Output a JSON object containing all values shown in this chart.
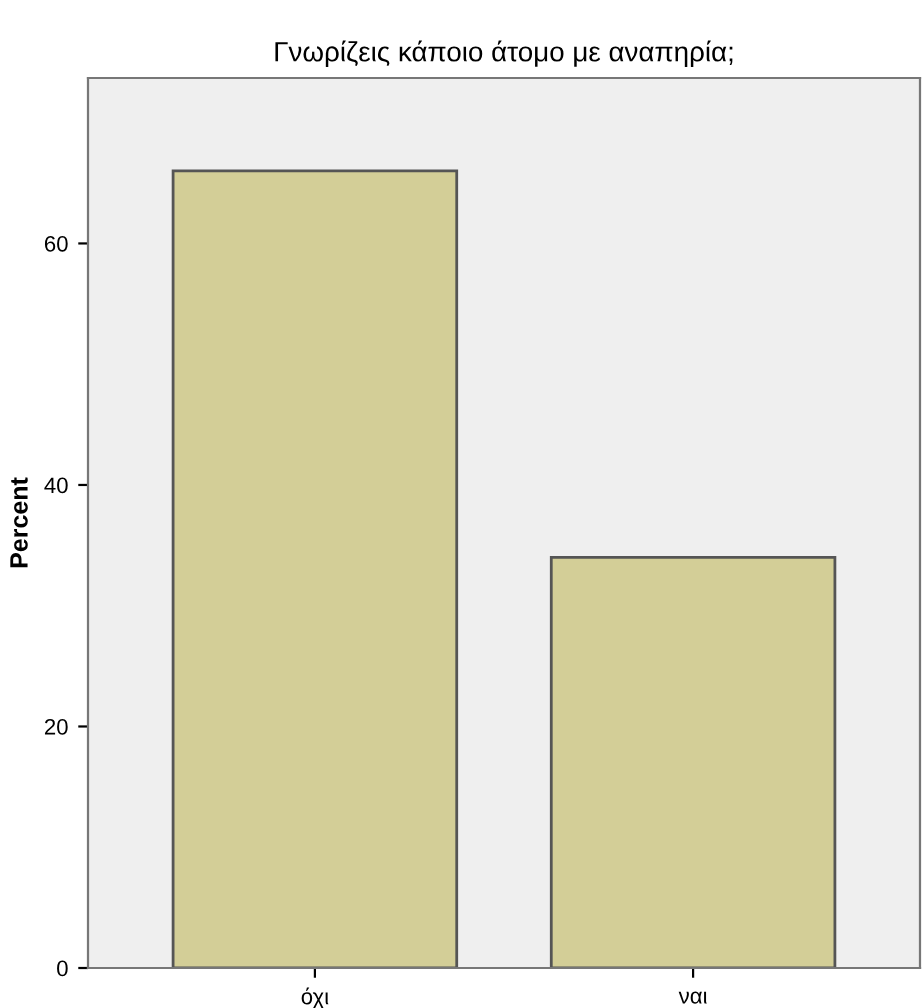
{
  "chart_data": {
    "type": "bar",
    "title": "Γνωρίζεις κάποιο άτομο με αναπηρία;",
    "ylabel": "Percent",
    "categories": [
      "όχι",
      "ναι"
    ],
    "values": [
      66,
      34
    ],
    "color": "#d3ce97",
    "ylim": [
      0,
      73.7
    ],
    "yticks": [
      0,
      20,
      40,
      60
    ],
    "grid": false
  }
}
